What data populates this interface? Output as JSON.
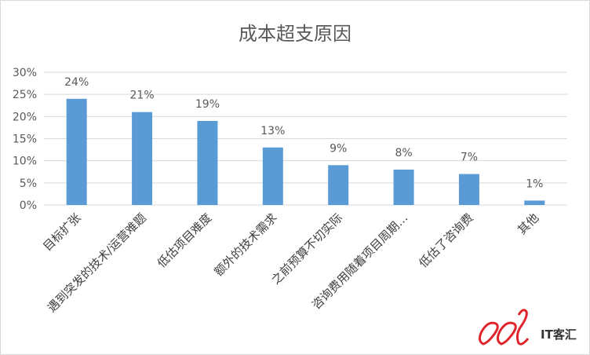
{
  "chart_data": {
    "type": "bar",
    "title": "成本超支原因",
    "xlabel": "",
    "ylabel": "",
    "categories": [
      "目标扩张",
      "遇到突发的技术/运营难题",
      "低估项目难度",
      "额外的技术需求",
      "之前预算不切实际",
      "咨询费用随着项目周期…",
      "低估了咨询费",
      "其他"
    ],
    "values": [
      24,
      21,
      19,
      13,
      9,
      8,
      7,
      1
    ],
    "data_labels": [
      "24%",
      "21%",
      "19%",
      "13%",
      "9%",
      "8%",
      "7%",
      "1%"
    ],
    "ylim": [
      0,
      30
    ],
    "yticks": [
      0,
      5,
      10,
      15,
      20,
      25,
      30
    ],
    "ytick_labels": [
      "0%",
      "5%",
      "10%",
      "15%",
      "20%",
      "25%",
      "30%"
    ],
    "grid": true,
    "legend": "none",
    "bar_color": "#5b9bd5"
  },
  "watermark": {
    "text": "IT客汇",
    "color": "#e0242b"
  }
}
